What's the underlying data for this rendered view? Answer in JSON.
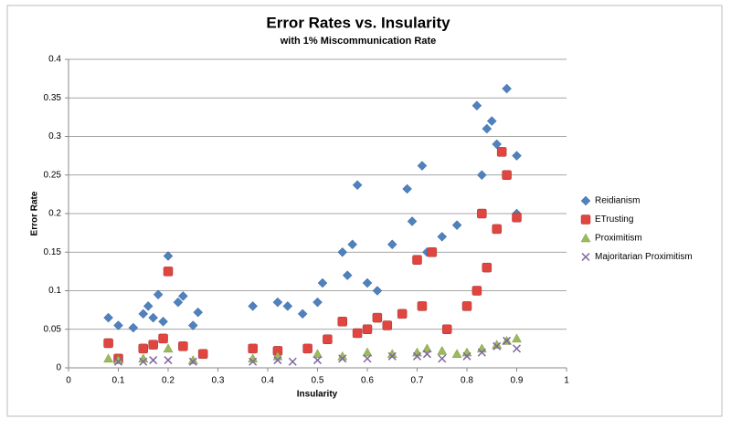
{
  "chart_data": {
    "type": "scatter",
    "title": "Error Rates vs. Insularity",
    "subtitle": "with 1% Miscommunication Rate",
    "x_label": "Insularity",
    "y_label": "Error Rate",
    "xlim": [
      0,
      1
    ],
    "xticks": [
      0,
      0.1,
      0.2,
      0.3,
      0.4,
      0.5,
      0.6,
      0.7,
      0.8,
      0.9,
      1
    ],
    "ylim": [
      0,
      0.4
    ],
    "yticks": [
      0,
      0.05,
      0.1,
      0.15,
      0.2,
      0.25,
      0.3,
      0.35,
      0.4
    ],
    "grid": true,
    "legend": "right",
    "series": [
      {
        "name": "Reidianism",
        "color": "#4f81bd",
        "marker": "diamond",
        "x": [
          0.08,
          0.1,
          0.13,
          0.15,
          0.16,
          0.17,
          0.18,
          0.19,
          0.2,
          0.22,
          0.23,
          0.25,
          0.26,
          0.37,
          0.42,
          0.44,
          0.47,
          0.5,
          0.51,
          0.55,
          0.56,
          0.57,
          0.58,
          0.6,
          0.62,
          0.65,
          0.68,
          0.69,
          0.71,
          0.72,
          0.75,
          0.78,
          0.82,
          0.83,
          0.84,
          0.85,
          0.86,
          0.88,
          0.9,
          0.9
        ],
        "values": [
          0.065,
          0.055,
          0.052,
          0.07,
          0.08,
          0.065,
          0.095,
          0.06,
          0.145,
          0.085,
          0.093,
          0.055,
          0.072,
          0.08,
          0.085,
          0.08,
          0.07,
          0.085,
          0.11,
          0.15,
          0.12,
          0.16,
          0.237,
          0.11,
          0.1,
          0.16,
          0.232,
          0.19,
          0.262,
          0.15,
          0.17,
          0.185,
          0.34,
          0.25,
          0.31,
          0.32,
          0.29,
          0.362,
          0.275,
          0.2
        ]
      },
      {
        "name": "ETrusting",
        "color": "#e0453f",
        "marker": "square",
        "x": [
          0.08,
          0.1,
          0.15,
          0.17,
          0.19,
          0.2,
          0.23,
          0.27,
          0.37,
          0.42,
          0.48,
          0.52,
          0.55,
          0.58,
          0.6,
          0.62,
          0.64,
          0.67,
          0.7,
          0.71,
          0.73,
          0.76,
          0.8,
          0.82,
          0.83,
          0.84,
          0.86,
          0.87,
          0.88,
          0.9
        ],
        "values": [
          0.032,
          0.012,
          0.025,
          0.03,
          0.038,
          0.125,
          0.028,
          0.018,
          0.025,
          0.022,
          0.025,
          0.037,
          0.06,
          0.045,
          0.05,
          0.065,
          0.055,
          0.07,
          0.14,
          0.08,
          0.15,
          0.05,
          0.08,
          0.1,
          0.2,
          0.13,
          0.18,
          0.28,
          0.25,
          0.195
        ]
      },
      {
        "name": "Proximitism",
        "color": "#9bbb59",
        "marker": "triangle",
        "x": [
          0.08,
          0.1,
          0.15,
          0.2,
          0.25,
          0.37,
          0.42,
          0.5,
          0.55,
          0.6,
          0.65,
          0.7,
          0.72,
          0.75,
          0.78,
          0.8,
          0.83,
          0.86,
          0.88,
          0.9
        ],
        "values": [
          0.012,
          0.01,
          0.012,
          0.025,
          0.01,
          0.012,
          0.015,
          0.018,
          0.015,
          0.02,
          0.018,
          0.02,
          0.025,
          0.022,
          0.018,
          0.02,
          0.025,
          0.03,
          0.035,
          0.038
        ]
      },
      {
        "name": "Majoritarian Proximitism",
        "color": "#8064a2",
        "marker": "x",
        "x": [
          0.1,
          0.15,
          0.17,
          0.2,
          0.25,
          0.37,
          0.42,
          0.45,
          0.5,
          0.55,
          0.6,
          0.65,
          0.7,
          0.72,
          0.75,
          0.8,
          0.83,
          0.86,
          0.88,
          0.9
        ],
        "values": [
          0.008,
          0.008,
          0.01,
          0.01,
          0.008,
          0.008,
          0.01,
          0.008,
          0.01,
          0.012,
          0.012,
          0.015,
          0.015,
          0.018,
          0.012,
          0.015,
          0.02,
          0.028,
          0.035,
          0.025
        ]
      }
    ]
  }
}
